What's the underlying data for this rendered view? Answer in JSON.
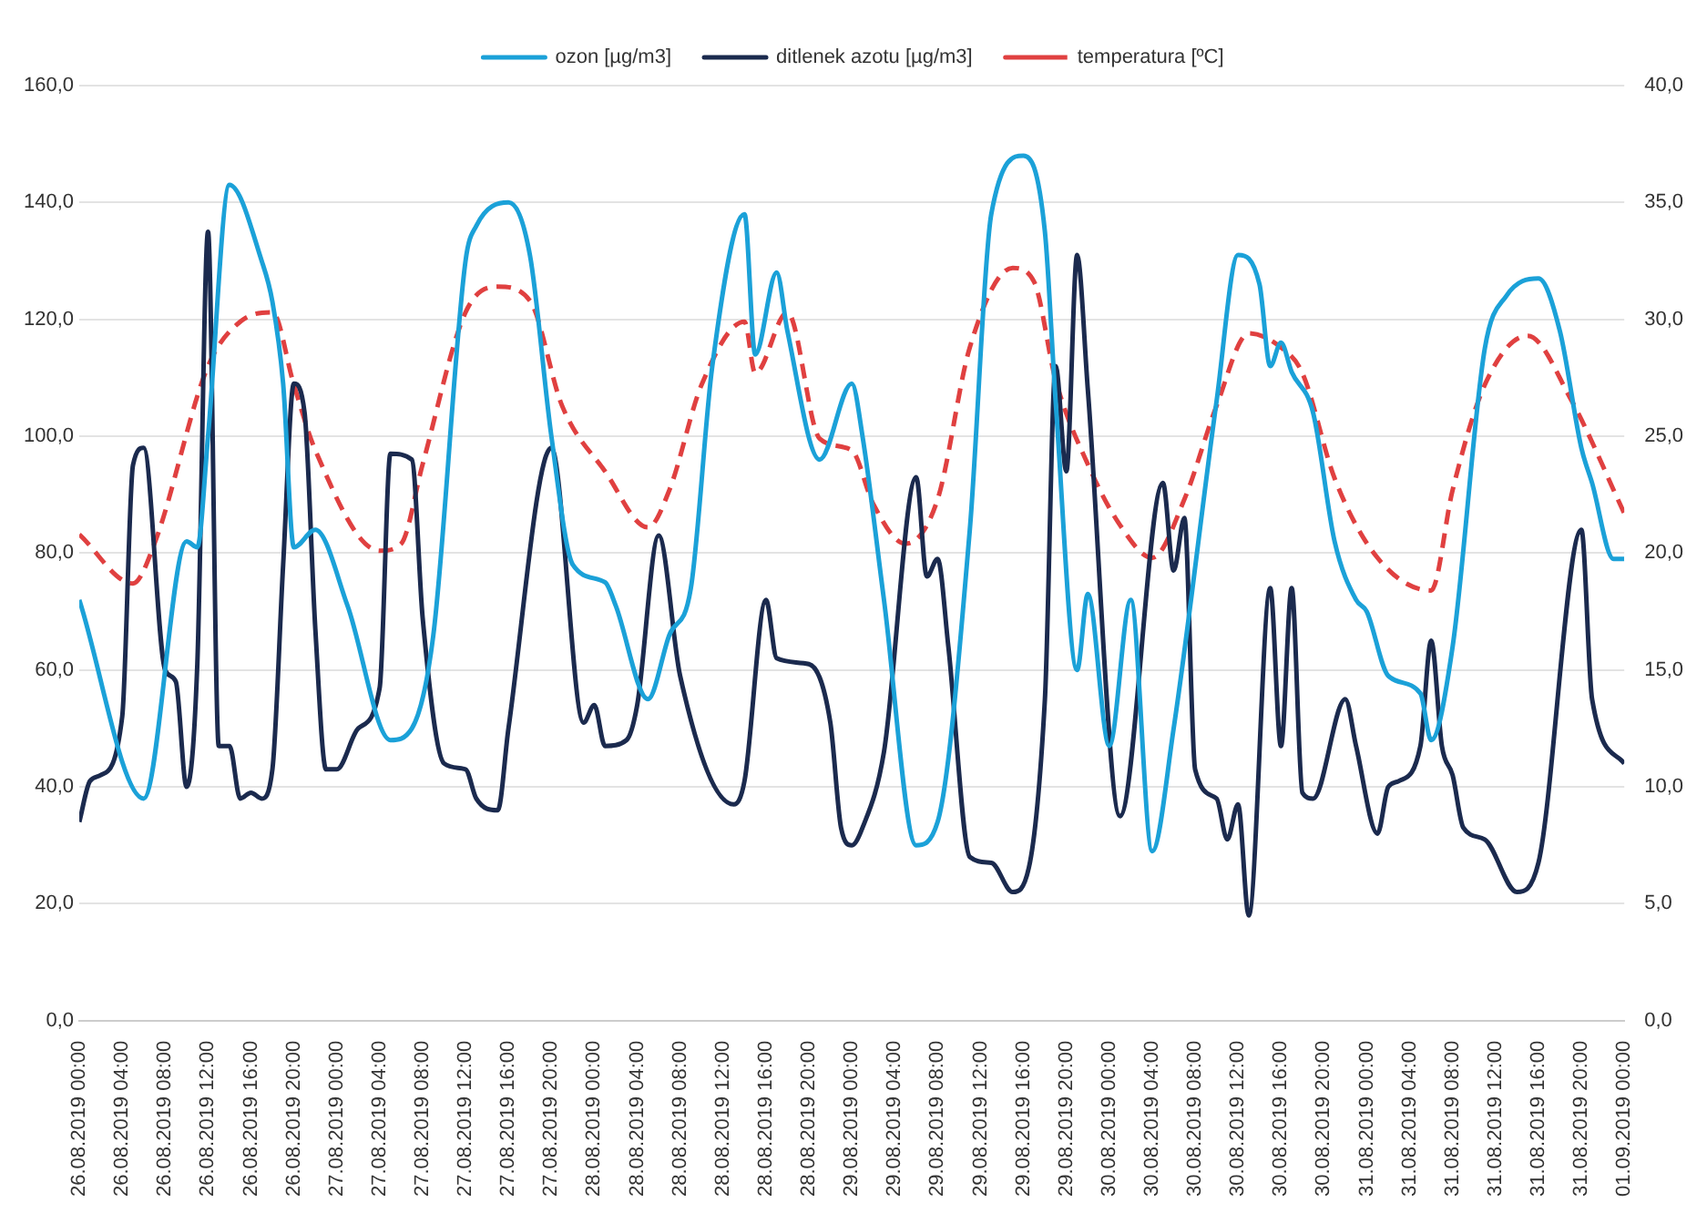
{
  "chart_data": {
    "type": "line",
    "xlim": [
      "2019-08-26T00:00",
      "2019-09-01T00:00"
    ],
    "xticks": [
      {
        "value": "2019-08-26T00:00",
        "label": "26.08.2019 00:00"
      },
      {
        "value": "2019-08-26T04:00",
        "label": "26.08.2019 04:00"
      },
      {
        "value": "2019-08-26T08:00",
        "label": "26.08.2019 08:00"
      },
      {
        "value": "2019-08-26T12:00",
        "label": "26.08.2019 12:00"
      },
      {
        "value": "2019-08-26T16:00",
        "label": "26.08.2019 16:00"
      },
      {
        "value": "2019-08-26T20:00",
        "label": "26.08.2019 20:00"
      },
      {
        "value": "2019-08-27T00:00",
        "label": "27.08.2019 00:00"
      },
      {
        "value": "2019-08-27T04:00",
        "label": "27.08.2019 04:00"
      },
      {
        "value": "2019-08-27T08:00",
        "label": "27.08.2019 08:00"
      },
      {
        "value": "2019-08-27T12:00",
        "label": "27.08.2019 12:00"
      },
      {
        "value": "2019-08-27T16:00",
        "label": "27.08.2019 16:00"
      },
      {
        "value": "2019-08-27T20:00",
        "label": "27.08.2019 20:00"
      },
      {
        "value": "2019-08-28T00:00",
        "label": "28.08.2019 00:00"
      },
      {
        "value": "2019-08-28T04:00",
        "label": "28.08.2019 04:00"
      },
      {
        "value": "2019-08-28T08:00",
        "label": "28.08.2019 08:00"
      },
      {
        "value": "2019-08-28T12:00",
        "label": "28.08.2019 12:00"
      },
      {
        "value": "2019-08-28T16:00",
        "label": "28.08.2019 16:00"
      },
      {
        "value": "2019-08-28T20:00",
        "label": "28.08.2019 20:00"
      },
      {
        "value": "2019-08-29T00:00",
        "label": "29.08.2019 00:00"
      },
      {
        "value": "2019-08-29T04:00",
        "label": "29.08.2019 04:00"
      },
      {
        "value": "2019-08-29T08:00",
        "label": "29.08.2019 08:00"
      },
      {
        "value": "2019-08-29T12:00",
        "label": "29.08.2019 12:00"
      },
      {
        "value": "2019-08-29T16:00",
        "label": "29.08.2019 16:00"
      },
      {
        "value": "2019-08-29T20:00",
        "label": "29.08.2019 20:00"
      },
      {
        "value": "2019-08-30T00:00",
        "label": "30.08.2019 00:00"
      },
      {
        "value": "2019-08-30T04:00",
        "label": "30.08.2019 04:00"
      },
      {
        "value": "2019-08-30T08:00",
        "label": "30.08.2019 08:00"
      },
      {
        "value": "2019-08-30T12:00",
        "label": "30.08.2019 12:00"
      },
      {
        "value": "2019-08-30T16:00",
        "label": "30.08.2019 16:00"
      },
      {
        "value": "2019-08-30T20:00",
        "label": "30.08.2019 20:00"
      },
      {
        "value": "2019-08-31T00:00",
        "label": "31.08.2019 00:00"
      },
      {
        "value": "2019-08-31T04:00",
        "label": "31.08.2019 04:00"
      },
      {
        "value": "2019-08-31T08:00",
        "label": "31.08.2019 08:00"
      },
      {
        "value": "2019-08-31T12:00",
        "label": "31.08.2019 12:00"
      },
      {
        "value": "2019-08-31T16:00",
        "label": "31.08.2019 16:00"
      },
      {
        "value": "2019-08-31T20:00",
        "label": "31.08.2019 20:00"
      },
      {
        "value": "2019-09-01T00:00",
        "label": "01.09.2019 00:00"
      }
    ],
    "ylim": [
      0,
      160
    ],
    "yticks": [
      {
        "value": 0,
        "label": "0,0"
      },
      {
        "value": 20,
        "label": "20,0"
      },
      {
        "value": 40,
        "label": "40,0"
      },
      {
        "value": 60,
        "label": "60,0"
      },
      {
        "value": 80,
        "label": "80,0"
      },
      {
        "value": 100,
        "label": "100,0"
      },
      {
        "value": 120,
        "label": "120,0"
      },
      {
        "value": 140,
        "label": "140,0"
      },
      {
        "value": 160,
        "label": "160,0"
      }
    ],
    "y2lim": [
      0,
      40
    ],
    "y2ticks": [
      {
        "value": 0,
        "label": "0,0"
      },
      {
        "value": 5,
        "label": "5,0"
      },
      {
        "value": 10,
        "label": "10,0"
      },
      {
        "value": 15,
        "label": "15,0"
      },
      {
        "value": 20,
        "label": "20,0"
      },
      {
        "value": 25,
        "label": "25,0"
      },
      {
        "value": 30,
        "label": "30,0"
      },
      {
        "value": 35,
        "label": "35,0"
      },
      {
        "value": 40,
        "label": "40,0"
      }
    ],
    "grid": "y",
    "legend": "top",
    "marker": "none",
    "series": [
      {
        "name": "ozon [µg/m3]",
        "color": "#1ba1d8",
        "line_style": "solid",
        "x": [
          "2019-08-26T00:00",
          "2019-08-26T06:00",
          "2019-08-26T10:00",
          "2019-08-26T11:00",
          "2019-08-26T12:00",
          "2019-08-26T14:00",
          "2019-08-26T17:00",
          "2019-08-26T18:00",
          "2019-08-26T19:00",
          "2019-08-26T20:00",
          "2019-08-26T22:00",
          "2019-08-27T01:00",
          "2019-08-27T05:00",
          "2019-08-27T07:00",
          "2019-08-27T09:00",
          "2019-08-27T12:00",
          "2019-08-27T13:00",
          "2019-08-27T16:00",
          "2019-08-27T18:00",
          "2019-08-27T20:00",
          "2019-08-27T22:00",
          "2019-08-28T01:00",
          "2019-08-28T02:00",
          "2019-08-28T05:00",
          "2019-08-28T07:00",
          "2019-08-28T09:00",
          "2019-08-28T11:00",
          "2019-08-28T14:00",
          "2019-08-28T15:00",
          "2019-08-28T17:00",
          "2019-08-28T18:00",
          "2019-08-28T21:00",
          "2019-08-29T00:00",
          "2019-08-29T01:00",
          "2019-08-29T03:00",
          "2019-08-29T06:00",
          "2019-08-29T08:00",
          "2019-08-29T11:00",
          "2019-08-29T13:00",
          "2019-08-29T16:00",
          "2019-08-29T18:00",
          "2019-08-29T19:00",
          "2019-08-29T21:00",
          "2019-08-29T22:00",
          "2019-08-30T00:00",
          "2019-08-30T02:00",
          "2019-08-30T04:00",
          "2019-08-30T06:00",
          "2019-08-30T10:00",
          "2019-08-30T12:00",
          "2019-08-30T14:00",
          "2019-08-30T15:00",
          "2019-08-30T16:00",
          "2019-08-30T17:00",
          "2019-08-30T19:00",
          "2019-08-30T21:00",
          "2019-08-30T23:00",
          "2019-08-31T00:00",
          "2019-08-31T02:00",
          "2019-08-31T05:00",
          "2019-08-31T06:00",
          "2019-08-31T08:00",
          "2019-08-31T11:00",
          "2019-08-31T13:00",
          "2019-08-31T16:00",
          "2019-08-31T18:00",
          "2019-08-31T20:00",
          "2019-08-31T21:00",
          "2019-08-31T23:00",
          "2019-09-01T00:00"
        ],
        "values": [
          72,
          38,
          82,
          81,
          100,
          143,
          130,
          123,
          109,
          81,
          84,
          71,
          48,
          50,
          66,
          130,
          136,
          140,
          131,
          100,
          78,
          75,
          71,
          55,
          66,
          74,
          112,
          138,
          114,
          128,
          118,
          96,
          109,
          100,
          72,
          30,
          34,
          84,
          138,
          148,
          135,
          106,
          60,
          73,
          47,
          72,
          29,
          50,
          106,
          131,
          126,
          112,
          116,
          111,
          104,
          82,
          72,
          70,
          59,
          56,
          48,
          64,
          115,
          124,
          127,
          118,
          98,
          92,
          79,
          79
        ]
      },
      {
        "name": "ditlenek azotu [µg/m3]",
        "color": "#1b2a4e",
        "line_style": "solid",
        "x": [
          "2019-08-26T00:00",
          "2019-08-26T01:00",
          "2019-08-26T02:00",
          "2019-08-26T04:00",
          "2019-08-26T05:00",
          "2019-08-26T06:00",
          "2019-08-26T08:00",
          "2019-08-26T09:00",
          "2019-08-26T10:00",
          "2019-08-26T11:00",
          "2019-08-26T12:00",
          "2019-08-26T13:00",
          "2019-08-26T14:00",
          "2019-08-26T15:00",
          "2019-08-26T16:00",
          "2019-08-26T17:00",
          "2019-08-26T18:00",
          "2019-08-26T19:00",
          "2019-08-26T20:00",
          "2019-08-26T21:00",
          "2019-08-26T22:00",
          "2019-08-26T23:00",
          "2019-08-27T00:00",
          "2019-08-27T02:00",
          "2019-08-27T04:00",
          "2019-08-27T05:00",
          "2019-08-27T07:00",
          "2019-08-27T08:00",
          "2019-08-27T10:00",
          "2019-08-27T12:00",
          "2019-08-27T13:00",
          "2019-08-27T15:00",
          "2019-08-27T16:00",
          "2019-08-27T20:00",
          "2019-08-27T23:00",
          "2019-08-28T00:00",
          "2019-08-28T01:00",
          "2019-08-28T03:00",
          "2019-08-28T04:00",
          "2019-08-28T06:00",
          "2019-08-28T08:00",
          "2019-08-28T13:00",
          "2019-08-28T14:00",
          "2019-08-28T16:00",
          "2019-08-28T17:00",
          "2019-08-28T20:00",
          "2019-08-28T22:00",
          "2019-08-28T23:00",
          "2019-08-29T00:00",
          "2019-08-29T01:00",
          "2019-08-29T03:00",
          "2019-08-29T06:00",
          "2019-08-29T07:00",
          "2019-08-29T08:00",
          "2019-08-29T09:00",
          "2019-08-29T11:00",
          "2019-08-29T13:00",
          "2019-08-29T15:00",
          "2019-08-29T18:00",
          "2019-08-29T19:00",
          "2019-08-29T20:00",
          "2019-08-29T21:00",
          "2019-08-29T22:00",
          "2019-08-30T01:00",
          "2019-08-30T05:00",
          "2019-08-30T06:00",
          "2019-08-30T07:00",
          "2019-08-30T08:00",
          "2019-08-30T10:00",
          "2019-08-30T11:00",
          "2019-08-30T12:00",
          "2019-08-30T13:00",
          "2019-08-30T15:00",
          "2019-08-30T16:00",
          "2019-08-30T17:00",
          "2019-08-30T18:00",
          "2019-08-30T19:00",
          "2019-08-30T22:00",
          "2019-08-30T23:00",
          "2019-08-31T01:00",
          "2019-08-31T02:00",
          "2019-08-31T03:00",
          "2019-08-31T05:00",
          "2019-08-31T06:00",
          "2019-08-31T07:00",
          "2019-08-31T08:00",
          "2019-08-31T09:00",
          "2019-08-31T11:00",
          "2019-08-31T14:00",
          "2019-08-31T16:00",
          "2019-08-31T20:00",
          "2019-08-31T21:00",
          "2019-09-01T00:00"
        ],
        "values": [
          34,
          41,
          42,
          52,
          95,
          98,
          60,
          58,
          40,
          61,
          135,
          47,
          47,
          38,
          39,
          38,
          43,
          78,
          109,
          104,
          67,
          43,
          43,
          50,
          57,
          97,
          96,
          69,
          44,
          43,
          38,
          36,
          50,
          98,
          51,
          54,
          47,
          48,
          54,
          83,
          59,
          37,
          41,
          72,
          62,
          61,
          51,
          33,
          30,
          33,
          46,
          93,
          76,
          79,
          64,
          28,
          27,
          22,
          55,
          112,
          94,
          131,
          108,
          35,
          92,
          77,
          86,
          43,
          38,
          31,
          37,
          18,
          74,
          47,
          74,
          39,
          38,
          55,
          47,
          32,
          40,
          41,
          47,
          65,
          47,
          42,
          33,
          31,
          22,
          27,
          84,
          55,
          44
        ]
      },
      {
        "name": "temperatura [ºC]",
        "color": "#e04040",
        "line_style": "dashed",
        "axis": "y2",
        "x": [
          "2019-08-26T00:00",
          "2019-08-26T05:00",
          "2019-08-26T07:00",
          "2019-08-26T12:00",
          "2019-08-26T15:00",
          "2019-08-26T18:00",
          "2019-08-26T20:00",
          "2019-08-26T22:00",
          "2019-08-27T04:00",
          "2019-08-27T06:00",
          "2019-08-27T08:00",
          "2019-08-27T12:00",
          "2019-08-27T15:00",
          "2019-08-27T18:00",
          "2019-08-27T21:00",
          "2019-08-28T01:00",
          "2019-08-28T05:00",
          "2019-08-28T07:00",
          "2019-08-28T10:00",
          "2019-08-28T14:00",
          "2019-08-28T15:00",
          "2019-08-28T18:00",
          "2019-08-28T21:00",
          "2019-08-29T00:00",
          "2019-08-29T02:00",
          "2019-08-29T05:00",
          "2019-08-29T08:00",
          "2019-08-29T11:00",
          "2019-08-29T15:00",
          "2019-08-29T17:00",
          "2019-08-29T19:00",
          "2019-08-29T22:00",
          "2019-08-30T01:00",
          "2019-08-30T04:00",
          "2019-08-30T07:00",
          "2019-08-30T10:00",
          "2019-08-30T13:00",
          "2019-08-30T16:00",
          "2019-08-30T18:00",
          "2019-08-30T21:00",
          "2019-08-31T01:00",
          "2019-08-31T06:00",
          "2019-08-31T08:00",
          "2019-08-31T11:00",
          "2019-08-31T15:00",
          "2019-08-31T19:00",
          "2019-09-01T00:00"
        ],
        "values": [
          20.8,
          18.7,
          20.4,
          28,
          29.9,
          30.3,
          27.2,
          24.4,
          20.1,
          20.4,
          23.8,
          30.3,
          31.4,
          30.8,
          26.3,
          23.5,
          21.1,
          22.7,
          27.2,
          29.9,
          27.7,
          30.3,
          24.9,
          24.4,
          22.1,
          20.4,
          22.3,
          28.8,
          32.2,
          31.6,
          27.4,
          23.8,
          21.2,
          19.8,
          22.3,
          26.3,
          29.4,
          28.8,
          27.7,
          23.2,
          19.8,
          18.4,
          22.7,
          27.2,
          29.3,
          26.6,
          21.7
        ]
      }
    ]
  }
}
